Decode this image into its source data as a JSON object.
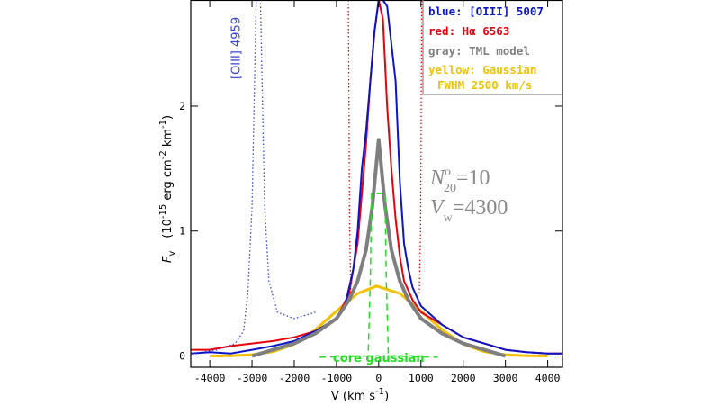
{
  "chart_data": {
    "type": "line",
    "x_label": [
      "V",
      " (km s",
      "-1",
      ")"
    ],
    "y_label": [
      "F",
      "v",
      "(10",
      "-15",
      " erg cm",
      "-2",
      " km",
      "-1",
      ")"
    ],
    "xlim": [
      -4450,
      4350
    ],
    "ylim": [
      -0.09,
      2.85
    ],
    "xticks": [
      -4000,
      -3000,
      -2000,
      -1000,
      0,
      1000,
      2000,
      3000,
      4000
    ],
    "yticks": [
      0,
      1,
      2
    ],
    "legend_note": "FWHM 2500 km/s",
    "annotations": [
      {
        "base": "N",
        "sup": "o",
        "sub": "20",
        "rest": "=10"
      },
      {
        "base": "V",
        "sub": "w",
        "rest": "=4300"
      }
    ],
    "series": [
      {
        "name": "yellow: Gaussian",
        "color": "#f2c200",
        "width": 3,
        "style": "solid",
        "x": [
          -4000,
          -3500,
          -3000,
          -2500,
          -2000,
          -1500,
          -1000,
          -500,
          -50,
          500,
          1000,
          1500,
          2000,
          2500,
          3000,
          3500,
          4000
        ],
        "values": [
          0,
          0.002,
          0.01,
          0.035,
          0.095,
          0.21,
          0.36,
          0.5,
          0.56,
          0.5,
          0.36,
          0.21,
          0.095,
          0.035,
          0.01,
          0.002,
          0
        ]
      },
      {
        "name": "red:  Hα 6563",
        "color": "#e8000b",
        "width": 2,
        "style": "solid",
        "x": [
          -4450,
          -4000,
          -3500,
          -3000,
          -2500,
          -2000,
          -1500,
          -1000,
          -700,
          -500,
          -400,
          -300,
          -200,
          -100,
          0,
          100,
          200,
          300,
          400,
          500,
          600,
          800,
          1000,
          1500,
          2000,
          2500,
          3000,
          3500,
          4000,
          4350
        ],
        "values": [
          0.05,
          0.05,
          0.08,
          0.1,
          0.12,
          0.15,
          0.2,
          0.3,
          0.5,
          0.9,
          1.3,
          1.7,
          2.2,
          2.6,
          2.85,
          2.7,
          2.0,
          1.5,
          1.1,
          0.8,
          0.6,
          0.45,
          0.35,
          0.25,
          0.15,
          0.1,
          0.05,
          0.03,
          0.02,
          0.02
        ]
      },
      {
        "name": "blue: [OIII] 5007",
        "color": "#0a14c8",
        "width": 2,
        "style": "solid",
        "x": [
          -4450,
          -4000,
          -3500,
          -3000,
          -2500,
          -2000,
          -1500,
          -1000,
          -800,
          -600,
          -500,
          -400,
          -300,
          -200,
          -100,
          0,
          100,
          200,
          300,
          400,
          500,
          600,
          700,
          800,
          1000,
          1500,
          2000,
          2500,
          3000,
          3500,
          4000,
          4350
        ],
        "values": [
          0.02,
          0.03,
          0.02,
          0.05,
          0.08,
          0.12,
          0.2,
          0.3,
          0.4,
          0.7,
          1.0,
          1.5,
          1.8,
          2.2,
          2.6,
          2.85,
          2.85,
          2.8,
          2.5,
          2.2,
          1.4,
          0.9,
          0.7,
          0.55,
          0.4,
          0.25,
          0.15,
          0.1,
          0.05,
          0.03,
          0.02,
          0.02
        ]
      },
      {
        "name": "gray: TML model",
        "color": "#7f7f7f",
        "width": 4,
        "style": "solid",
        "x": [
          -3000,
          -2500,
          -2000,
          -1500,
          -1000,
          -700,
          -500,
          -300,
          -150,
          0,
          150,
          300,
          500,
          700,
          1000,
          1500,
          2000,
          2500,
          3000
        ],
        "values": [
          0,
          0.05,
          0.1,
          0.18,
          0.3,
          0.45,
          0.6,
          0.85,
          1.2,
          1.73,
          1.2,
          0.85,
          0.6,
          0.45,
          0.3,
          0.18,
          0.1,
          0.05,
          0
        ]
      },
      {
        "name": "[OIII] 4959",
        "color": "#3a44d0",
        "width": 1.3,
        "style": "dotted",
        "x": [
          -4450,
          -3800,
          -3400,
          -3200,
          -3100,
          -3000,
          -2900,
          -2800,
          -2700,
          -2600,
          -2400,
          -2000,
          -1800,
          -1500
        ],
        "values": [
          0.02,
          0.05,
          0.1,
          0.2,
          0.5,
          1.2,
          2.85,
          2.85,
          1.2,
          0.6,
          0.35,
          0.3,
          0.32,
          0.35
        ]
      },
      {
        "color": "#e8000b",
        "width": 1.3,
        "style": "dotted",
        "x": [
          -720,
          -690,
          -660,
          0,
          960,
          990,
          1020
        ],
        "values": [
          2.85,
          1.0,
          0.5,
          null,
          0.5,
          1.0,
          2.85
        ]
      },
      {
        "name": "core gaussian",
        "color": "#22dd22",
        "width": 1.5,
        "style": "dashed",
        "x": [
          -1400,
          -250,
          -200,
          -170,
          150,
          180,
          230,
          1400
        ],
        "values": [
          -0.01,
          0,
          0.6,
          1.3,
          1.3,
          0.6,
          0,
          -0.01
        ]
      }
    ]
  }
}
